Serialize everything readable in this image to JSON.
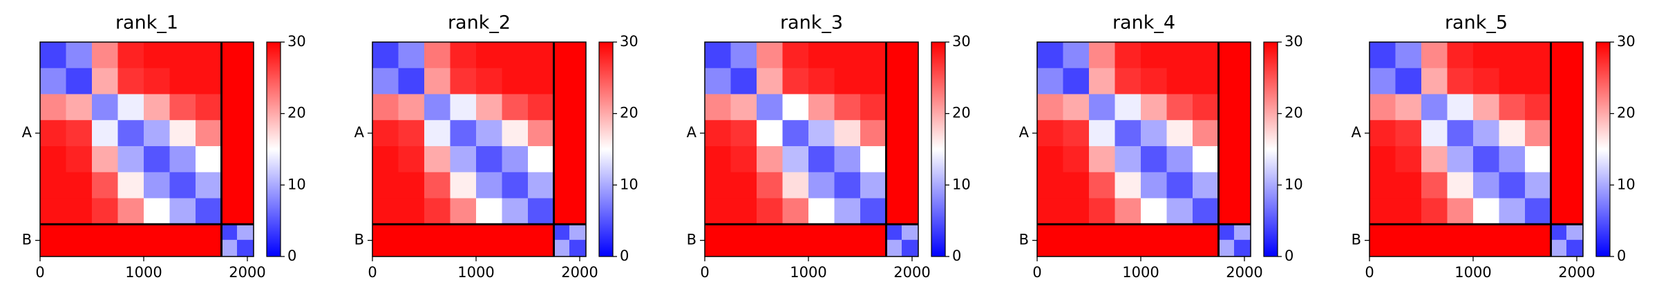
{
  "chart_data": [
    {
      "type": "heatmap",
      "title": "rank_1",
      "bins": [
        0,
        250,
        500,
        750,
        1000,
        1250,
        1500,
        1750,
        1900,
        2060
      ],
      "matrix": [
        [
          4,
          8,
          22,
          28,
          29,
          29,
          29,
          30,
          30
        ],
        [
          8,
          4,
          20,
          27,
          28,
          29,
          29,
          30,
          30
        ],
        [
          22,
          20,
          8,
          14,
          20,
          25,
          27,
          30,
          30
        ],
        [
          28,
          27,
          14,
          6,
          10,
          16,
          22,
          30,
          30
        ],
        [
          29,
          28,
          20,
          10,
          5,
          9,
          15,
          30,
          30
        ],
        [
          29,
          29,
          25,
          16,
          9,
          5,
          10,
          30,
          30
        ],
        [
          29,
          29,
          27,
          22,
          15,
          10,
          5,
          30,
          30
        ],
        [
          30,
          30,
          30,
          30,
          30,
          30,
          30,
          4,
          10
        ],
        [
          30,
          30,
          30,
          30,
          30,
          30,
          30,
          10,
          4
        ]
      ],
      "xlim": [
        0,
        2060
      ],
      "ylim": [
        2060,
        0
      ],
      "xticks": [
        0,
        1000,
        2000
      ],
      "yticks": [
        {
          "value": 875,
          "label": "A"
        },
        {
          "value": 1905,
          "label": "B"
        }
      ],
      "boundaries": [
        1750
      ],
      "clim": [
        0,
        30
      ],
      "cticks": [
        0,
        10,
        20,
        30
      ],
      "cmap": [
        "#0000ff",
        "#ffffff",
        "#ff0000"
      ]
    },
    {
      "type": "heatmap",
      "title": "rank_2",
      "bins": [
        0,
        250,
        500,
        750,
        1000,
        1250,
        1500,
        1750,
        1900,
        2060
      ],
      "matrix": [
        [
          4,
          8,
          23,
          28,
          29,
          29,
          29,
          30,
          30
        ],
        [
          8,
          4,
          21,
          27,
          28,
          29,
          29,
          30,
          30
        ],
        [
          23,
          21,
          8,
          14,
          20,
          25,
          27,
          30,
          30
        ],
        [
          28,
          27,
          14,
          6,
          10,
          16,
          22,
          30,
          30
        ],
        [
          29,
          28,
          20,
          10,
          5,
          9,
          15,
          30,
          30
        ],
        [
          29,
          29,
          25,
          16,
          9,
          5,
          10,
          30,
          30
        ],
        [
          29,
          29,
          27,
          22,
          15,
          10,
          5,
          30,
          30
        ],
        [
          30,
          30,
          30,
          30,
          30,
          30,
          30,
          4,
          10
        ],
        [
          30,
          30,
          30,
          30,
          30,
          30,
          30,
          10,
          4
        ]
      ],
      "xlim": [
        0,
        2060
      ],
      "ylim": [
        2060,
        0
      ],
      "xticks": [
        0,
        1000,
        2000
      ],
      "yticks": [
        {
          "value": 875,
          "label": "A"
        },
        {
          "value": 1905,
          "label": "B"
        }
      ],
      "boundaries": [
        1750
      ],
      "clim": [
        0,
        30
      ],
      "cticks": [
        0,
        10,
        20,
        30
      ],
      "cmap": [
        "#0000ff",
        "#ffffff",
        "#ff0000"
      ]
    },
    {
      "type": "heatmap",
      "title": "rank_3",
      "bins": [
        0,
        250,
        500,
        750,
        1000,
        1250,
        1500,
        1750,
        1900,
        2060
      ],
      "matrix": [
        [
          4,
          8,
          22,
          28,
          29,
          29,
          29,
          30,
          30
        ],
        [
          8,
          4,
          20,
          27,
          28,
          29,
          29,
          30,
          30
        ],
        [
          22,
          20,
          8,
          15,
          21,
          25,
          27,
          30,
          30
        ],
        [
          28,
          27,
          15,
          6,
          11,
          17,
          23,
          30,
          30
        ],
        [
          29,
          28,
          21,
          11,
          5,
          9,
          15,
          30,
          30
        ],
        [
          29,
          29,
          25,
          17,
          9,
          5,
          10,
          30,
          30
        ],
        [
          29,
          29,
          27,
          23,
          15,
          10,
          5,
          30,
          30
        ],
        [
          30,
          30,
          30,
          30,
          30,
          30,
          30,
          4,
          10
        ],
        [
          30,
          30,
          30,
          30,
          30,
          30,
          30,
          10,
          4
        ]
      ],
      "xlim": [
        0,
        2060
      ],
      "ylim": [
        2060,
        0
      ],
      "xticks": [
        0,
        1000,
        2000
      ],
      "yticks": [
        {
          "value": 875,
          "label": "A"
        },
        {
          "value": 1905,
          "label": "B"
        }
      ],
      "boundaries": [
        1750
      ],
      "clim": [
        0,
        30
      ],
      "cticks": [
        0,
        10,
        20,
        30
      ],
      "cmap": [
        "#0000ff",
        "#ffffff",
        "#ff0000"
      ]
    },
    {
      "type": "heatmap",
      "title": "rank_4",
      "bins": [
        0,
        250,
        500,
        750,
        1000,
        1250,
        1500,
        1750,
        1900,
        2060
      ],
      "matrix": [
        [
          4,
          8,
          22,
          28,
          29,
          29,
          29,
          30,
          30
        ],
        [
          8,
          4,
          20,
          27,
          28,
          29,
          29,
          30,
          30
        ],
        [
          22,
          20,
          8,
          14,
          20,
          25,
          27,
          30,
          30
        ],
        [
          28,
          27,
          14,
          6,
          10,
          16,
          22,
          30,
          30
        ],
        [
          29,
          28,
          20,
          10,
          5,
          9,
          15,
          30,
          30
        ],
        [
          29,
          29,
          25,
          16,
          9,
          5,
          10,
          30,
          30
        ],
        [
          29,
          29,
          27,
          22,
          15,
          10,
          5,
          30,
          30
        ],
        [
          30,
          30,
          30,
          30,
          30,
          30,
          30,
          4,
          10
        ],
        [
          30,
          30,
          30,
          30,
          30,
          30,
          30,
          10,
          4
        ]
      ],
      "xlim": [
        0,
        2060
      ],
      "ylim": [
        2060,
        0
      ],
      "xticks": [
        0,
        1000,
        2000
      ],
      "yticks": [
        {
          "value": 875,
          "label": "A"
        },
        {
          "value": 1905,
          "label": "B"
        }
      ],
      "boundaries": [
        1750
      ],
      "clim": [
        0,
        30
      ],
      "cticks": [
        0,
        10,
        20,
        30
      ],
      "cmap": [
        "#0000ff",
        "#ffffff",
        "#ff0000"
      ]
    },
    {
      "type": "heatmap",
      "title": "rank_5",
      "bins": [
        0,
        250,
        500,
        750,
        1000,
        1250,
        1500,
        1750,
        1900,
        2060
      ],
      "matrix": [
        [
          4,
          8,
          22,
          28,
          29,
          29,
          29,
          30,
          30
        ],
        [
          8,
          4,
          20,
          27,
          28,
          29,
          29,
          30,
          30
        ],
        [
          22,
          20,
          8,
          14,
          20,
          25,
          27,
          30,
          30
        ],
        [
          28,
          27,
          14,
          6,
          10,
          16,
          22,
          30,
          30
        ],
        [
          29,
          28,
          20,
          10,
          5,
          9,
          15,
          30,
          30
        ],
        [
          29,
          29,
          25,
          16,
          9,
          5,
          10,
          30,
          30
        ],
        [
          29,
          29,
          27,
          22,
          15,
          10,
          5,
          30,
          30
        ],
        [
          30,
          30,
          30,
          30,
          30,
          30,
          30,
          4,
          10
        ],
        [
          30,
          30,
          30,
          30,
          30,
          30,
          30,
          10,
          4
        ]
      ],
      "xlim": [
        0,
        2060
      ],
      "ylim": [
        2060,
        0
      ],
      "xticks": [
        0,
        1000,
        2000
      ],
      "yticks": [
        {
          "value": 875,
          "label": "A"
        },
        {
          "value": 1905,
          "label": "B"
        }
      ],
      "boundaries": [
        1750
      ],
      "clim": [
        0,
        30
      ],
      "cticks": [
        0,
        10,
        20,
        30
      ],
      "cmap": [
        "#0000ff",
        "#ffffff",
        "#ff0000"
      ]
    }
  ]
}
